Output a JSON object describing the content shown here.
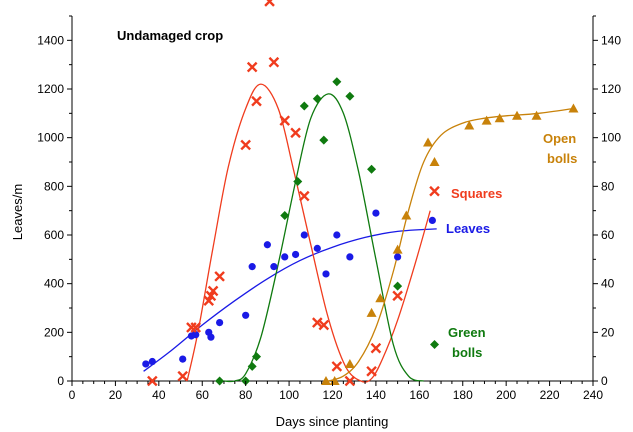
{
  "chart_data": {
    "type": "scatter",
    "annotation": "Undamaged crop",
    "xlabel": "Days since planting",
    "ylabel_left": "Leaves/m",
    "xlim": [
      0,
      240
    ],
    "xticks": [
      0,
      20,
      40,
      60,
      80,
      100,
      120,
      140,
      160,
      180,
      200,
      220,
      240
    ],
    "ylim_left": [
      0,
      1500
    ],
    "yticks_left": [
      0,
      200,
      400,
      600,
      800,
      1000,
      1200,
      1400
    ],
    "ylim_right": [
      0,
      150
    ],
    "yticks_right": [
      0,
      20,
      40,
      60,
      80,
      100,
      120,
      140
    ],
    "grid": false,
    "series": [
      {
        "name": "Leaves",
        "axis": "left",
        "color": "#1a1ae6",
        "marker": "circle",
        "label_lines": [
          "Leaves"
        ],
        "x": [
          34,
          37,
          51,
          55,
          57,
          63,
          64,
          68,
          80,
          83,
          90,
          93,
          98,
          103,
          107,
          113,
          117,
          122,
          128,
          140,
          150,
          166
        ],
        "y": [
          70,
          80,
          90,
          185,
          190,
          200,
          180,
          240,
          270,
          470,
          560,
          470,
          510,
          520,
          600,
          545,
          440,
          600,
          510,
          690,
          510,
          660
        ],
        "fit_x": [
          33,
          45,
          60,
          75,
          90,
          105,
          120,
          135,
          150,
          168
        ],
        "fit_y": [
          40,
          120,
          230,
          330,
          420,
          495,
          550,
          590,
          615,
          625
        ]
      },
      {
        "name": "Squares",
        "axis": "left",
        "color": "#f03c1e",
        "marker": "x",
        "label_lines": [
          "Squares"
        ],
        "x": [
          37,
          51,
          55,
          57,
          63,
          64,
          65,
          68,
          80,
          83,
          85,
          91,
          93,
          98,
          103,
          107,
          113,
          116,
          122,
          128,
          138,
          140,
          150,
          167
        ],
        "y": [
          0,
          20,
          220,
          220,
          330,
          350,
          370,
          430,
          970,
          1290,
          1150,
          1560,
          1310,
          1070,
          1020,
          760,
          240,
          230,
          60,
          0,
          40,
          135,
          350,
          780
        ],
        "fit_x": [
          53,
          58,
          65,
          72,
          80,
          87,
          95,
          102,
          110,
          118,
          126,
          133,
          138,
          143,
          150,
          158,
          165
        ],
        "fit_y": [
          0,
          200,
          550,
          880,
          1120,
          1220,
          1120,
          870,
          560,
          260,
          60,
          0,
          10,
          90,
          250,
          480,
          700
        ]
      },
      {
        "name": "Green bolls",
        "axis": "right",
        "color": "#0f7a0f",
        "marker": "diamond",
        "label_lines": [
          "Green",
          "bolls"
        ],
        "x": [
          68,
          80,
          83,
          85,
          98,
          104,
          107,
          113,
          116,
          122,
          128,
          138,
          150,
          167
        ],
        "y": [
          0,
          0,
          6,
          10,
          68,
          82,
          113,
          116,
          99,
          123,
          117,
          87,
          39,
          15
        ],
        "fit_x": [
          70,
          75,
          80,
          87,
          95,
          103,
          110,
          118,
          125,
          132,
          140,
          148,
          155,
          162
        ],
        "fit_y": [
          0,
          0,
          3,
          18,
          48,
          82,
          108,
          118,
          110,
          86,
          50,
          15,
          2,
          0
        ]
      },
      {
        "name": "Open bolls",
        "axis": "right",
        "color": "#c8820a",
        "marker": "triangle",
        "label_lines": [
          "Open",
          "bolls"
        ],
        "x": [
          117,
          121,
          128,
          138,
          142,
          150,
          154,
          164,
          167,
          183,
          191,
          197,
          205,
          214,
          231
        ],
        "y": [
          0,
          0,
          7,
          28,
          34,
          54,
          68,
          98,
          90,
          105,
          107,
          108,
          109,
          109,
          112
        ],
        "fit_x": [
          118,
          125,
          132,
          140,
          148,
          155,
          162,
          170,
          180,
          190,
          200,
          215,
          231
        ],
        "fit_y": [
          0,
          2,
          8,
          22,
          45,
          70,
          90,
          101,
          106,
          108,
          109,
          110,
          112
        ]
      }
    ]
  }
}
